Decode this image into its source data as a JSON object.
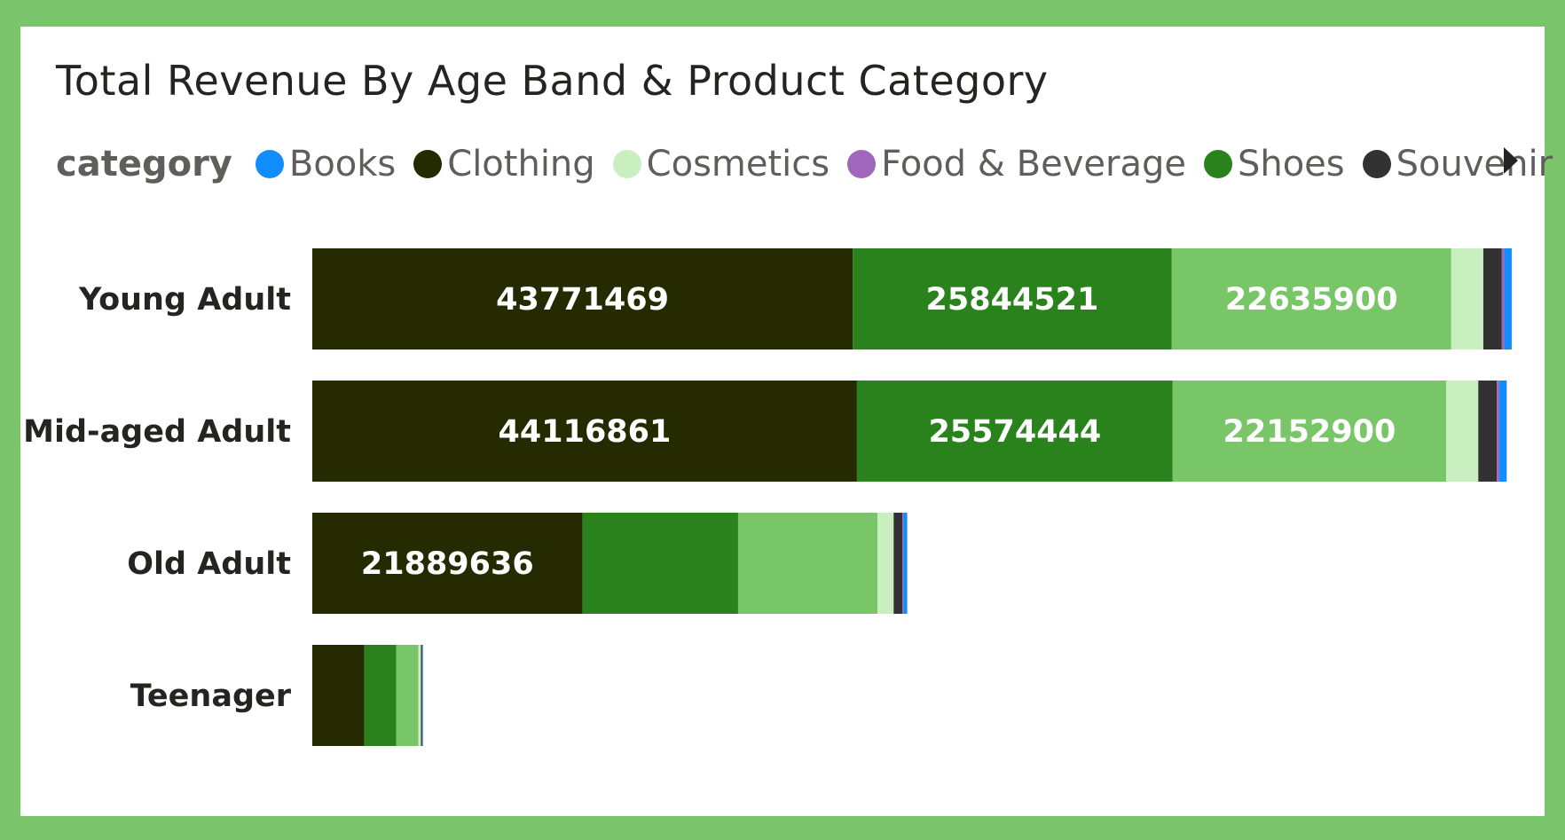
{
  "chart_data": {
    "type": "bar",
    "orientation": "horizontal",
    "stacked": true,
    "title": "Total Revenue By Age Band & Product Category",
    "legend_title": "category",
    "legend_position": "top",
    "grid": false,
    "categories": [
      "Young Adult",
      "Mid-aged Adult",
      "Old Adult",
      "Teenager"
    ],
    "series": [
      {
        "name": "Clothing",
        "color": "#252a00",
        "values": [
          43771469,
          44116861,
          21889636,
          4200000
        ]
      },
      {
        "name": "Shoes",
        "color": "#2a821d",
        "values": [
          25844521,
          25574444,
          12600000,
          2600000
        ]
      },
      {
        "name": "",
        "color": "#78c668",
        "values": [
          22635900,
          22152900,
          11300000,
          1800000
        ]
      },
      {
        "name": "Cosmetics",
        "color": "#c9efc1",
        "values": [
          2600000,
          2600000,
          1300000,
          200000
        ]
      },
      {
        "name": "Souvenir",
        "color": "#323232",
        "values": [
          1500000,
          1500000,
          700000,
          100000
        ]
      },
      {
        "name": "Food & Beverage",
        "color": "#a066bb",
        "values": [
          200000,
          200000,
          100000,
          20000
        ]
      },
      {
        "name": "Books",
        "color": "#118dff",
        "values": [
          600000,
          600000,
          300000,
          50000
        ]
      }
    ],
    "data_labels": [
      [
        "43771469",
        "25844521",
        "22635900"
      ],
      [
        "44116861",
        "25574444",
        "22152900"
      ],
      [
        "21889636"
      ],
      []
    ],
    "xlim": [
      0,
      97300000
    ]
  },
  "legend": {
    "items": [
      {
        "label": "Books",
        "color": "#118dff"
      },
      {
        "label": "Clothing",
        "color": "#252a00"
      },
      {
        "label": "Cosmetics",
        "color": "#c9efc1"
      },
      {
        "label": "Food & Beverage",
        "color": "#a066bb"
      },
      {
        "label": "Shoes",
        "color": "#2a821d"
      },
      {
        "label": "Souvenir",
        "color": "#323232"
      }
    ]
  },
  "colors": {
    "frame": "#7ac56c",
    "background": "#ffffff"
  }
}
